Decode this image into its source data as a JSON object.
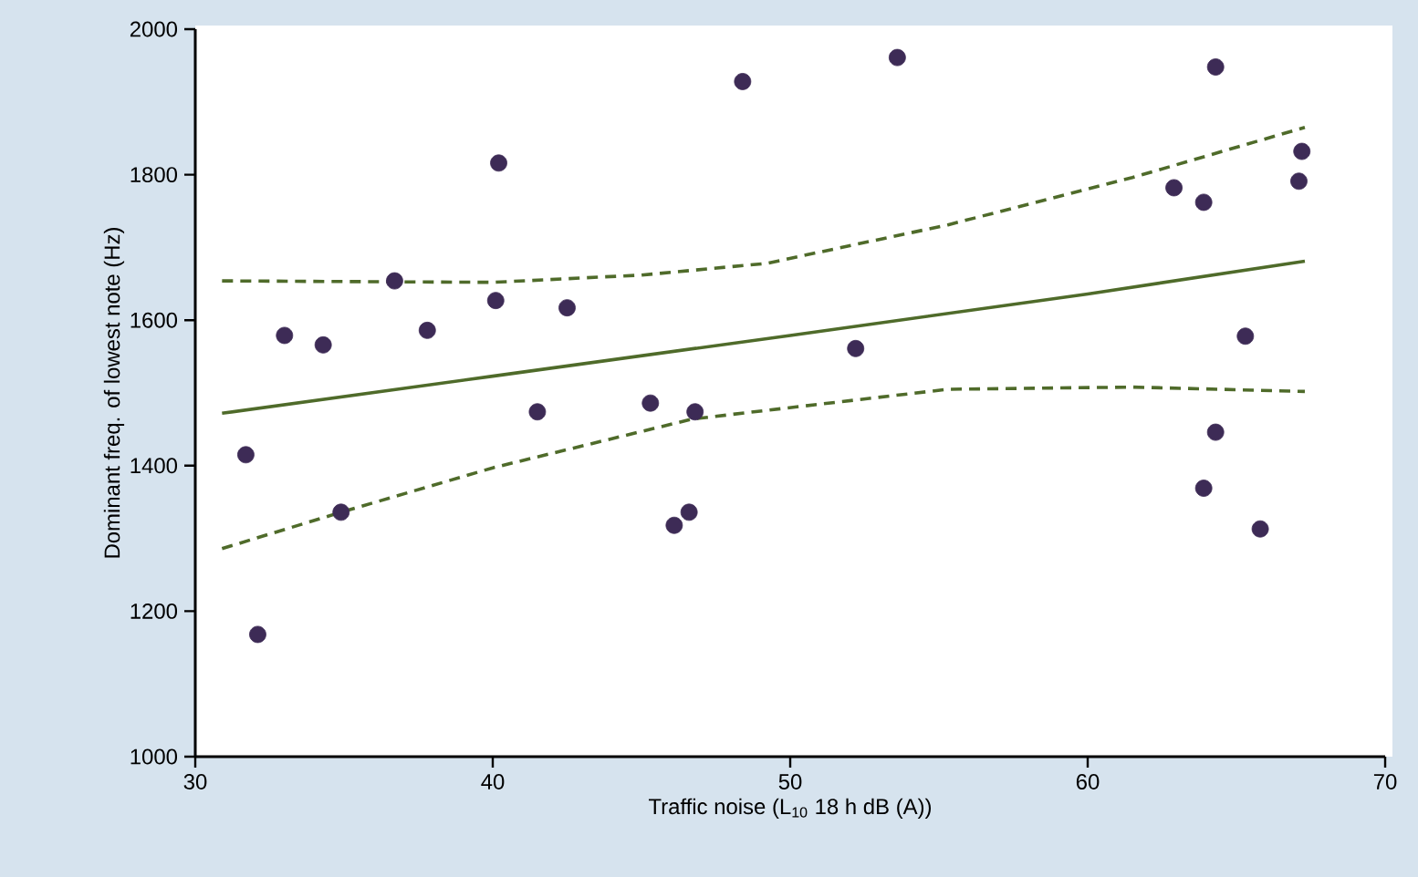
{
  "chart_data": {
    "type": "scatter",
    "xlabel": "Traffic noise (L$_{10}$ 18 h dB (A))",
    "ylabel": "Dominant freq. of lowest note (Hz)",
    "xlim": [
      30,
      70
    ],
    "xticks": [
      30,
      40,
      50,
      60,
      70
    ],
    "ylim": [
      1000,
      2000
    ],
    "yticks": [
      1000,
      1200,
      1400,
      1600,
      1800,
      2000
    ],
    "grid": false,
    "series": [
      {
        "marker": "circle",
        "color": "#3d2b56",
        "x": [
          31.7,
          32.1,
          33.0,
          34.3,
          34.9,
          36.7,
          37.8,
          40.1,
          40.2,
          41.5,
          42.5,
          45.3,
          46.1,
          46.6,
          46.8,
          48.4,
          52.2,
          53.6,
          62.9,
          63.9,
          64.3,
          65.3,
          64.3,
          63.9,
          65.8,
          67.2,
          67.1
        ],
        "values": [
          1415,
          1168,
          1579,
          1566,
          1336,
          1654,
          1586,
          1627,
          1816,
          1474,
          1617,
          1486,
          1318,
          1336,
          1474,
          1928,
          1561,
          1961,
          1782,
          1762,
          1948,
          1578,
          1446,
          1369,
          1313,
          1832,
          1791
        ]
      },
      {
        "type": "line",
        "line_style": "solid",
        "marker": "none",
        "color": "#4f6b2a",
        "x": [
          30.9,
          40,
          50,
          60,
          67.3
        ],
        "values": [
          1472,
          1523,
          1579,
          1636,
          1681
        ]
      },
      {
        "type": "line",
        "line_style": "dashed",
        "marker": "none",
        "color": "#4f6b2a",
        "x": [
          30.9,
          40,
          45,
          49.2,
          55.3,
          61.5,
          67.3
        ],
        "values": [
          1654,
          1652,
          1662,
          1678,
          1731,
          1796,
          1865
        ]
      },
      {
        "type": "line",
        "line_style": "dashed",
        "marker": "none",
        "color": "#4f6b2a",
        "x": [
          30.9,
          34.9,
          40,
          46.7,
          49.2,
          55.3,
          61.5,
          67.3
        ],
        "values": [
          1286,
          1336,
          1397,
          1464,
          1476,
          1505,
          1508,
          1502
        ]
      }
    ]
  }
}
